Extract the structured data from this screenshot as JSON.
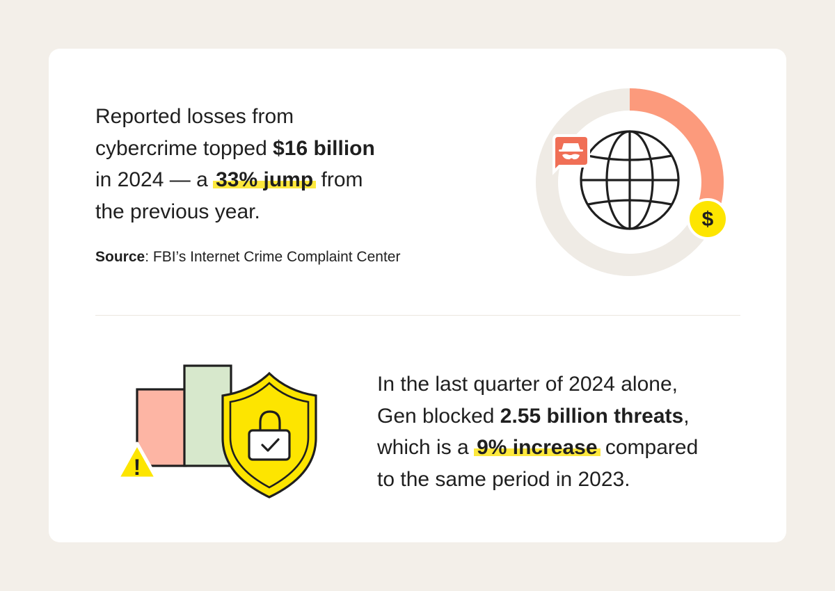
{
  "stat_top": {
    "line1": "Reported losses from",
    "line2_pre": "cybercrime topped ",
    "line2_bold": "$16 billion",
    "line3_pre": "in 2024 — a ",
    "line3_highlight": "33% jump",
    "line3_post": " from",
    "line4": "the previous year."
  },
  "source": {
    "label": "Source",
    "colon": ":",
    "text": " FBI’s Internet Crime Complaint Center"
  },
  "stat_bottom": {
    "line1": "In the last quarter of 2024 alone,",
    "line2_pre": "Gen blocked ",
    "line2_bold": "2.55 billion threats",
    "line2_post": ",",
    "line3_pre": "which is a ",
    "line3_highlight": "9% increase",
    "line3_post": " compared",
    "line4": "to the same period in 2023."
  },
  "globe_graphic": {
    "ring_fill_fraction": 0.29,
    "dollar_symbol": "$",
    "colors": {
      "ring_track": "#efebe5",
      "ring_fill": "#fc9a7c",
      "hacker_badge": "#f06f56",
      "coin": "#fde500",
      "outline": "#1f1f1f"
    },
    "icons": [
      "globe-icon",
      "hacker-icon",
      "dollar-coin-icon"
    ]
  },
  "security_graphic": {
    "warning_symbol": "!",
    "colors": {
      "bar_left": "#fdb5a4",
      "bar_right": "#d7e8cc",
      "shield": "#fde500",
      "warning": "#fde500",
      "outline": "#1f1f1f"
    },
    "icons": [
      "bar-chart-icon",
      "shield-icon",
      "padlock-icon",
      "checkmark-icon",
      "warning-icon"
    ]
  }
}
